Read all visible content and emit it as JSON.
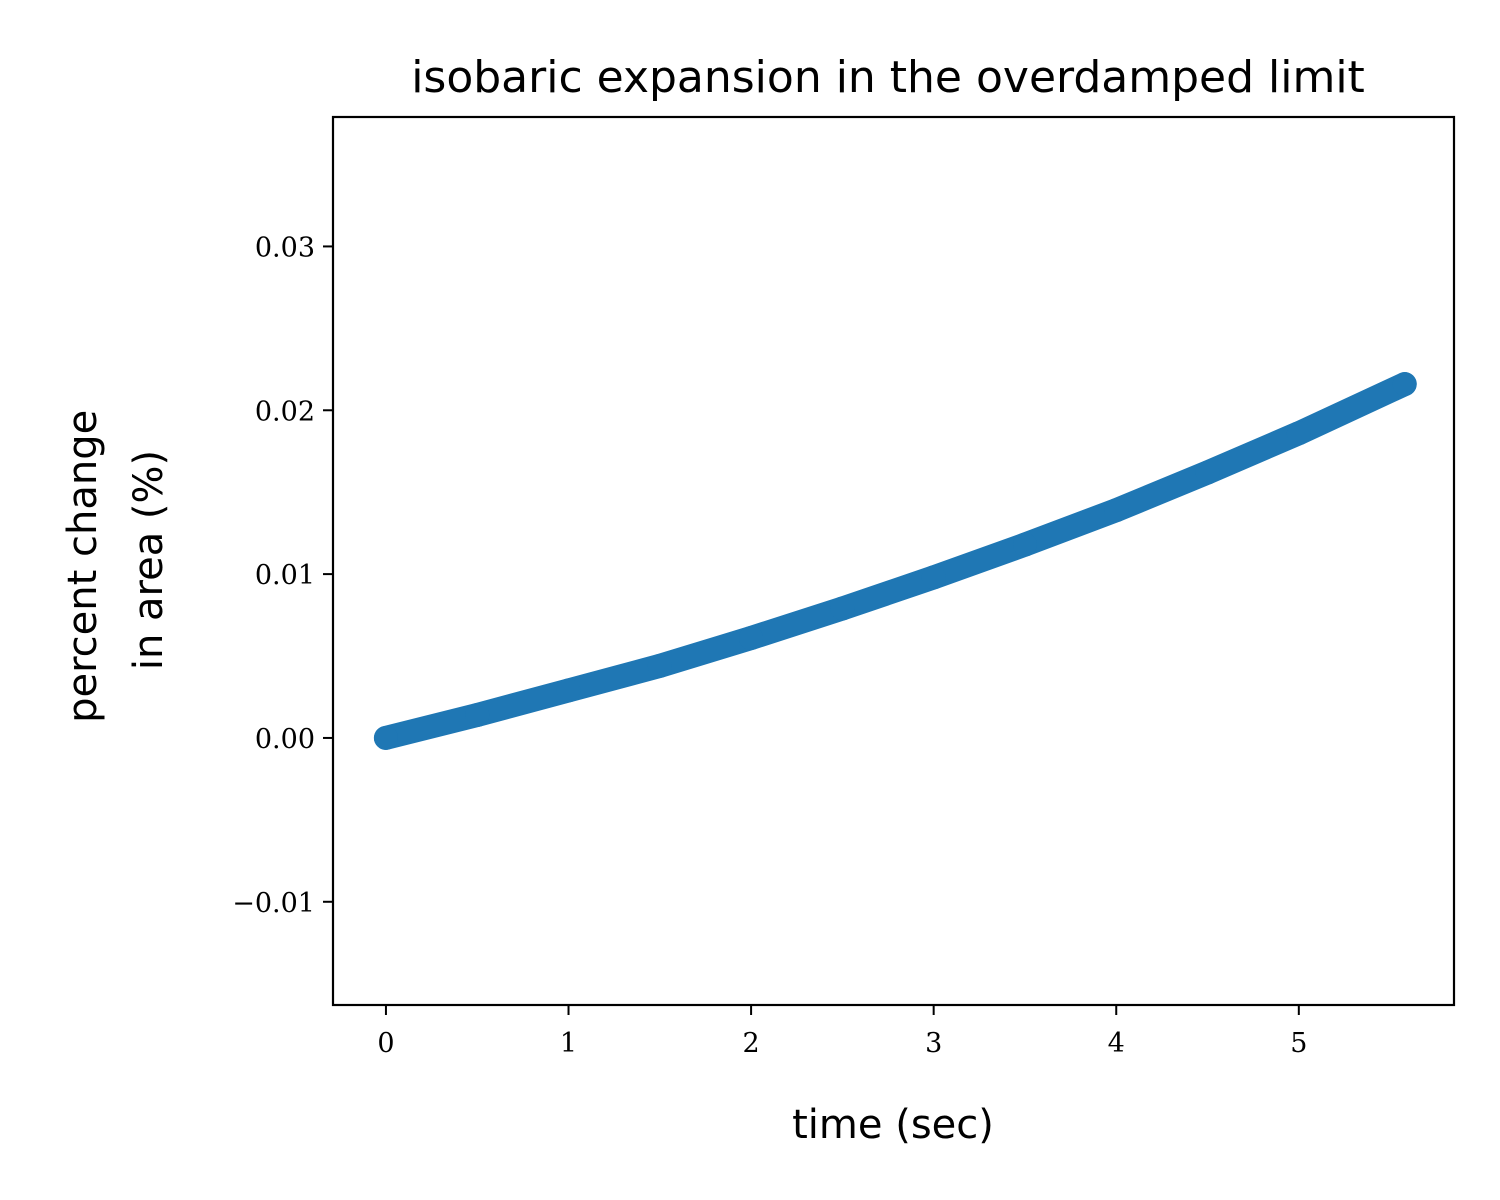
{
  "chart_data": {
    "type": "scatter",
    "title": "isobaric expansion in the overdamped limit",
    "xlabel": "time (sec)",
    "ylabel_lines": [
      "percent change",
      "in area (%)"
    ],
    "xlim": [
      -0.29,
      5.85
    ],
    "ylim": [
      -0.0163,
      0.0379
    ],
    "xticks": [
      0,
      1,
      2,
      3,
      4,
      5
    ],
    "xtick_labels": [
      "0",
      "1",
      "2",
      "3",
      "4",
      "5"
    ],
    "yticks": [
      -0.01,
      0.0,
      0.01,
      0.02,
      0.03
    ],
    "ytick_labels": [
      "−0.01",
      "0.00",
      "0.01",
      "0.02",
      "0.03"
    ],
    "grid": false,
    "legend": "none",
    "series": [
      {
        "color": "#1f77b4",
        "x": [
          0,
          0.5,
          1,
          1.5,
          2,
          2.5,
          3,
          3.5,
          4,
          4.5,
          5,
          5.58
        ],
        "y": [
          0,
          0.0014,
          0.0029,
          0.0044,
          0.0061,
          0.0079,
          0.0098,
          0.0118,
          0.0139,
          0.0162,
          0.0186,
          0.0216
        ]
      }
    ]
  }
}
